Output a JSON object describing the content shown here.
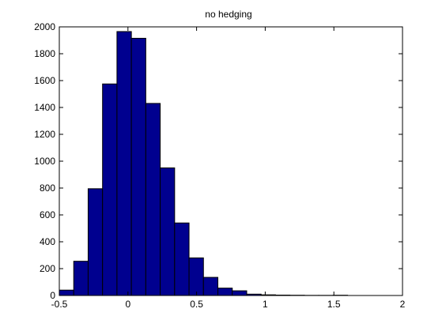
{
  "chart_data": {
    "type": "bar",
    "title": "no hedging",
    "xlabel": "",
    "ylabel": "",
    "xlim": [
      -0.5,
      2
    ],
    "ylim": [
      0,
      2000
    ],
    "xticks": [
      -0.5,
      0,
      0.5,
      1,
      1.5,
      2
    ],
    "xtick_labels": [
      "-0.5",
      "0",
      "0.5",
      "1",
      "1.5",
      "2"
    ],
    "yticks": [
      0,
      200,
      400,
      600,
      800,
      1000,
      1200,
      1400,
      1600,
      1800,
      2000
    ],
    "ytick_labels": [
      "0",
      "200",
      "400",
      "600",
      "800",
      "1000",
      "1200",
      "1400",
      "1600",
      "1800",
      "2000"
    ],
    "grid": false,
    "bin_width": 0.105,
    "bins": [
      {
        "x0": -0.5,
        "value": 40
      },
      {
        "x0": -0.395,
        "value": 255
      },
      {
        "x0": -0.29,
        "value": 795
      },
      {
        "x0": -0.185,
        "value": 1575
      },
      {
        "x0": -0.08,
        "value": 1965
      },
      {
        "x0": 0.025,
        "value": 1915
      },
      {
        "x0": 0.13,
        "value": 1430
      },
      {
        "x0": 0.235,
        "value": 950
      },
      {
        "x0": 0.34,
        "value": 540
      },
      {
        "x0": 0.445,
        "value": 280
      },
      {
        "x0": 0.55,
        "value": 135
      },
      {
        "x0": 0.655,
        "value": 55
      },
      {
        "x0": 0.76,
        "value": 35
      },
      {
        "x0": 0.865,
        "value": 10
      },
      {
        "x0": 0.97,
        "value": 5
      },
      {
        "x0": 1.075,
        "value": 3
      },
      {
        "x0": 1.18,
        "value": 2
      },
      {
        "x0": 1.285,
        "value": 1
      },
      {
        "x0": 1.39,
        "value": 1
      },
      {
        "x0": 1.495,
        "value": 2
      }
    ],
    "colors": {
      "bar_fill": "#00008f",
      "bar_stroke": "#000000",
      "axes": "#000000",
      "background": "#ffffff"
    }
  }
}
